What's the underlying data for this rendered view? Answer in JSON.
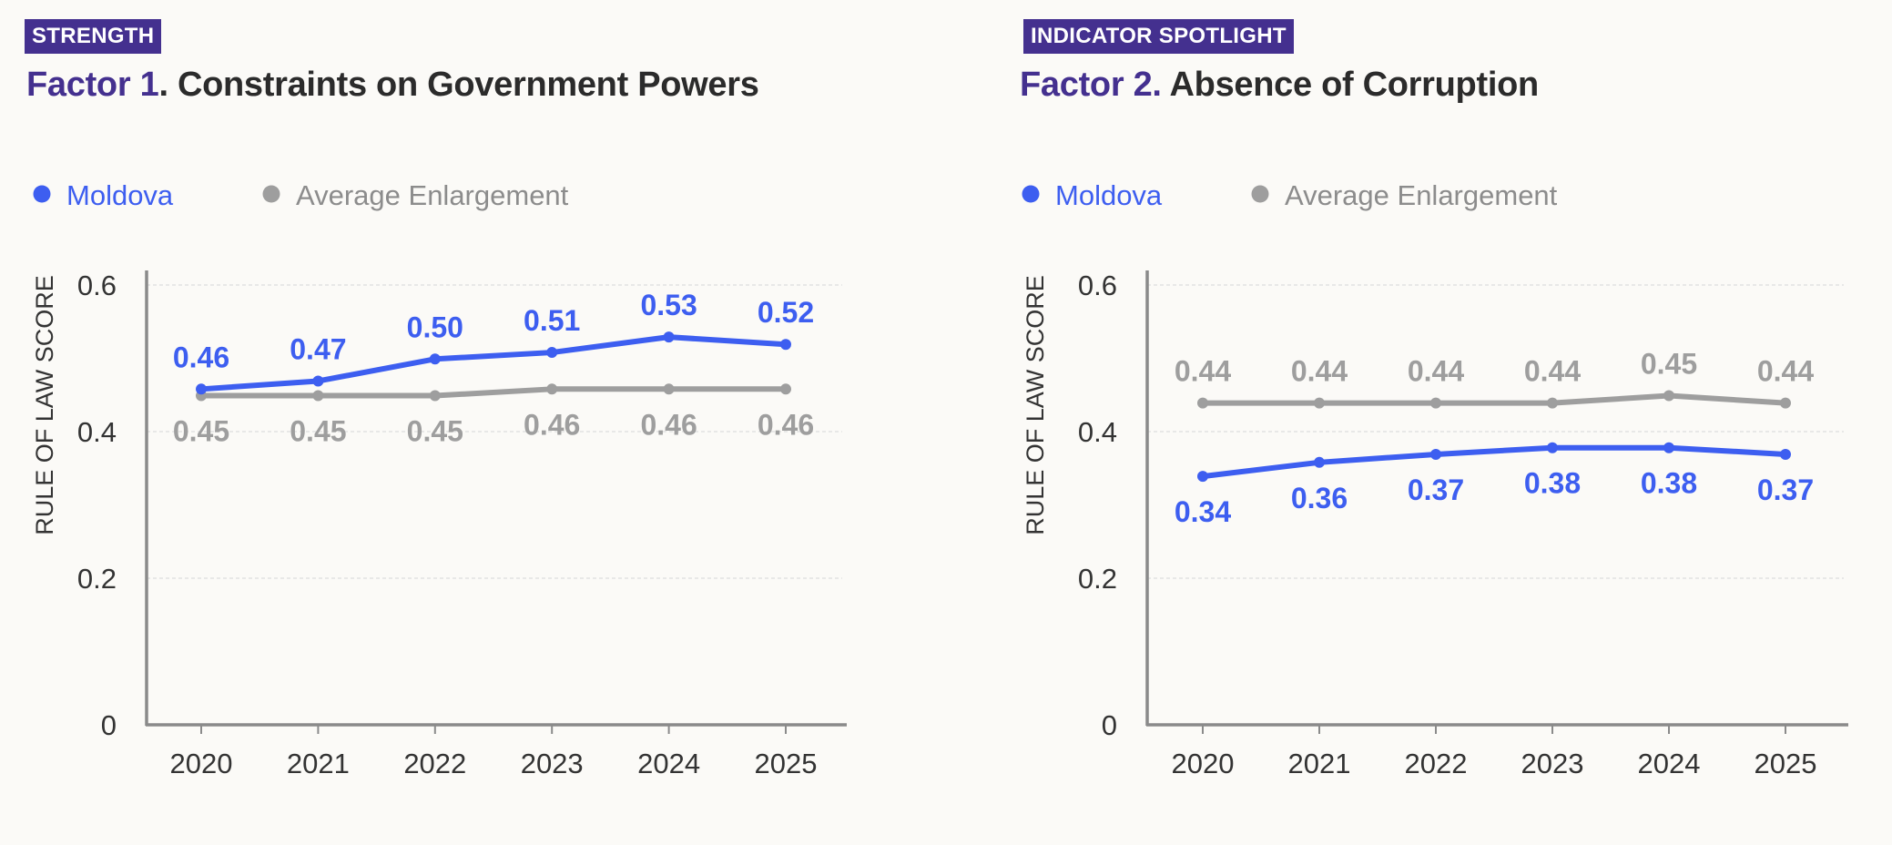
{
  "colors": {
    "badge_bg": "#44308f",
    "factor_text": "#44308f",
    "moldova": "#3d5ef0",
    "average": "#9e9e9e",
    "axis": "#8a8a8a",
    "grid": "#e2e2e2",
    "text": "#333333"
  },
  "panels": [
    {
      "badge": "STRENGTH",
      "title_factor": "Factor 1",
      "title_rest": ". Constraints on Government Powers",
      "legend": [
        "Moldova",
        "Average Enlargement"
      ],
      "chart_data": {
        "type": "line",
        "x": [
          "2020",
          "2021",
          "2022",
          "2023",
          "2024",
          "2025"
        ],
        "ylabel": "RULE OF LAW SCORE",
        "ylim": [
          0,
          0.6
        ],
        "yticks": [
          "0",
          "0.2",
          "0.4",
          "0.6"
        ],
        "grid": true,
        "legend_position": "top-left",
        "series": [
          {
            "name": "Moldova",
            "values": [
              0.458,
              0.469,
              0.499,
              0.508,
              0.529,
              0.519
            ],
            "labels": [
              "0.46",
              "0.47",
              "0.50",
              "0.51",
              "0.53",
              "0.52"
            ],
            "label_position": "above"
          },
          {
            "name": "Average Enlargement",
            "values": [
              0.449,
              0.449,
              0.449,
              0.458,
              0.458,
              0.458
            ],
            "labels": [
              "0.45",
              "0.45",
              "0.45",
              "0.46",
              "0.46",
              "0.46"
            ],
            "label_position": "below"
          }
        ]
      }
    },
    {
      "badge": "INDICATOR SPOTLIGHT",
      "title_factor": "Factor 2.",
      "title_rest": " Absence of Corruption",
      "legend": [
        "Moldova",
        "Average Enlargement"
      ],
      "chart_data": {
        "type": "line",
        "x": [
          "2020",
          "2021",
          "2022",
          "2023",
          "2024",
          "2025"
        ],
        "ylabel": "RULE OF LAW SCORE",
        "ylim": [
          0,
          0.6
        ],
        "yticks": [
          "0",
          "0.2",
          "0.4",
          "0.6"
        ],
        "grid": true,
        "legend_position": "top-left",
        "series": [
          {
            "name": "Moldova",
            "values": [
              0.339,
              0.358,
              0.369,
              0.378,
              0.378,
              0.369
            ],
            "labels": [
              "0.34",
              "0.36",
              "0.37",
              "0.38",
              "0.38",
              "0.37"
            ],
            "label_position": "below"
          },
          {
            "name": "Average Enlargement",
            "values": [
              0.439,
              0.439,
              0.439,
              0.439,
              0.449,
              0.439
            ],
            "labels": [
              "0.44",
              "0.44",
              "0.44",
              "0.44",
              "0.45",
              "0.44"
            ],
            "label_position": "above"
          }
        ]
      }
    }
  ]
}
